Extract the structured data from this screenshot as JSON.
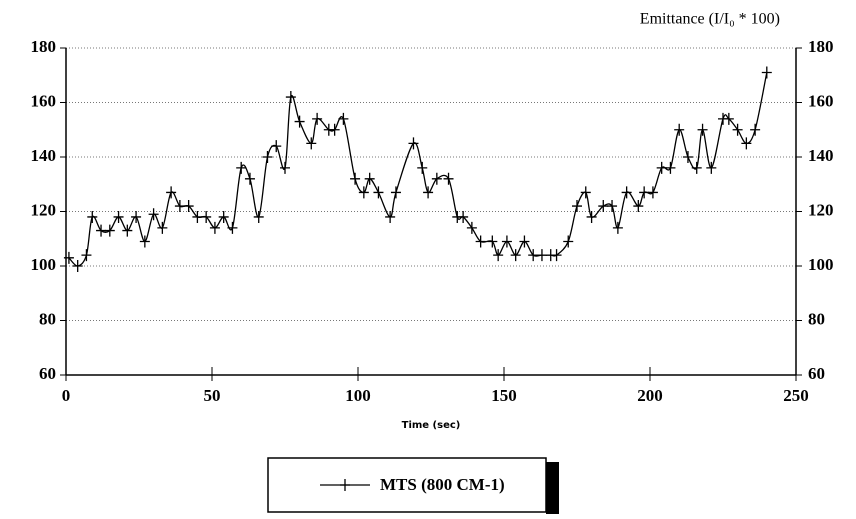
{
  "chart_data": {
    "type": "line",
    "y2_title": "Emittance (I/I₀ * 100)",
    "x_label": "Time (sec)",
    "xlim": [
      0,
      250
    ],
    "xticks": [
      0,
      50,
      100,
      150,
      200,
      250
    ],
    "ylim": [
      60,
      180
    ],
    "yticks": [
      60,
      80,
      100,
      120,
      140,
      160,
      180
    ],
    "y2lim": [
      60,
      180
    ],
    "y2ticks": [
      60,
      80,
      100,
      120,
      140,
      160,
      180
    ],
    "grid": true,
    "legend": "bottom",
    "x": [
      1,
      4,
      7,
      9,
      12,
      15,
      18,
      21,
      24,
      27,
      30,
      33,
      36,
      39,
      42,
      45,
      48,
      51,
      54,
      57,
      60,
      63,
      66,
      69,
      72,
      75,
      77,
      80,
      84,
      86,
      90,
      92,
      95,
      99,
      102,
      104,
      107,
      111,
      113,
      119,
      122,
      124,
      127,
      131,
      134,
      136,
      139,
      142,
      146,
      148,
      151,
      154,
      157,
      160,
      163,
      166,
      168,
      172,
      175,
      178,
      180,
      184,
      187,
      189,
      192,
      196,
      198,
      201,
      204,
      207,
      210,
      213,
      216,
      218,
      221,
      225,
      227,
      230,
      233,
      236,
      240
    ],
    "series": [
      {
        "name": "MTS (800 CM-1)",
        "color": "#000000",
        "values": [
          103,
          100,
          104,
          118,
          113,
          113,
          118,
          113,
          118,
          109,
          119,
          114,
          127,
          122,
          122,
          118,
          118,
          114,
          118,
          114,
          136,
          132,
          118,
          140,
          144,
          136,
          162,
          153,
          145,
          154,
          150,
          150,
          154,
          132,
          127,
          132,
          127,
          118,
          127,
          145,
          136,
          127,
          132,
          132,
          118,
          118,
          114,
          109,
          109,
          104,
          109,
          104,
          109,
          104,
          104,
          104,
          104,
          109,
          122,
          127,
          118,
          122,
          122,
          114,
          127,
          122,
          127,
          127,
          136,
          136,
          150,
          140,
          136,
          150,
          136,
          154,
          154,
          150,
          145,
          150,
          171
        ]
      }
    ]
  }
}
